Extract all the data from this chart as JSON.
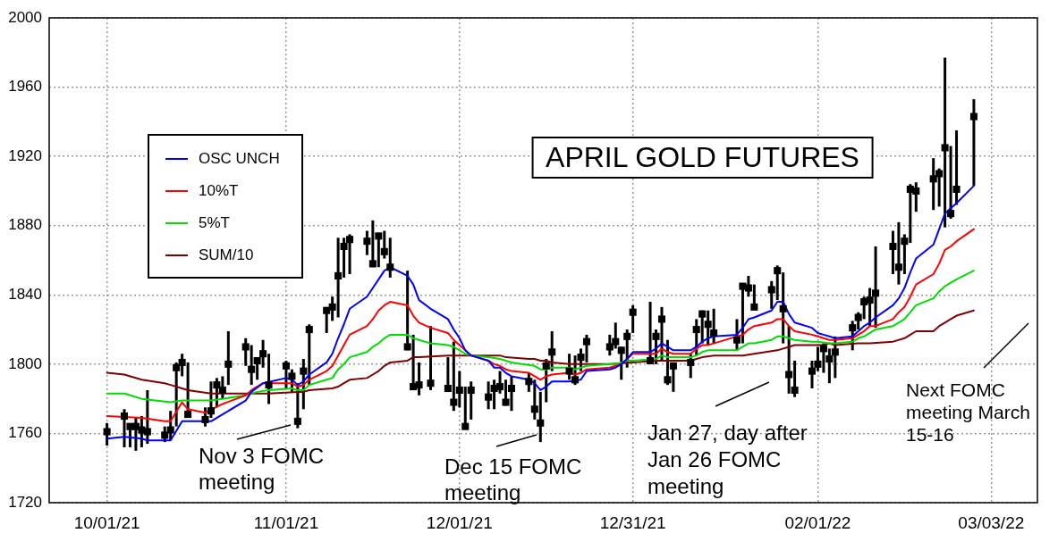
{
  "chart_data": {
    "type": "scatter",
    "title": "APRIL GOLD FUTURES",
    "x": [
      "2021-10-01",
      "2021-10-04",
      "2021-10-05",
      "2021-10-06",
      "2021-10-07",
      "2021-10-08",
      "2021-10-11",
      "2021-10-12",
      "2021-10-13",
      "2021-10-14",
      "2021-10-15",
      "2021-10-18",
      "2021-10-19",
      "2021-10-20",
      "2021-10-21",
      "2021-10-22",
      "2021-10-25",
      "2021-10-26",
      "2021-10-27",
      "2021-10-28",
      "2021-10-29",
      "2021-11-01",
      "2021-11-02",
      "2021-11-03",
      "2021-11-04",
      "2021-11-05",
      "2021-11-08",
      "2021-11-09",
      "2021-11-10",
      "2021-11-11",
      "2021-11-12",
      "2021-11-15",
      "2021-11-16",
      "2021-11-17",
      "2021-11-18",
      "2021-11-19",
      "2021-11-22",
      "2021-11-23",
      "2021-11-24",
      "2021-11-26",
      "2021-11-29",
      "2021-11-30",
      "2021-12-01",
      "2021-12-02",
      "2021-12-03",
      "2021-12-06",
      "2021-12-07",
      "2021-12-08",
      "2021-12-09",
      "2021-12-10",
      "2021-12-13",
      "2021-12-14",
      "2021-12-15",
      "2021-12-16",
      "2021-12-17",
      "2021-12-20",
      "2021-12-21",
      "2021-12-22",
      "2021-12-23",
      "2021-12-27",
      "2021-12-28",
      "2021-12-29",
      "2021-12-30",
      "2021-12-31",
      "2022-01-03",
      "2022-01-04",
      "2022-01-05",
      "2022-01-06",
      "2022-01-07",
      "2022-01-10",
      "2022-01-11",
      "2022-01-12",
      "2022-01-13",
      "2022-01-14",
      "2022-01-18",
      "2022-01-19",
      "2022-01-20",
      "2022-01-21",
      "2022-01-24",
      "2022-01-25",
      "2022-01-26",
      "2022-01-27",
      "2022-01-28",
      "2022-01-31",
      "2022-02-01",
      "2022-02-02",
      "2022-02-03",
      "2022-02-04",
      "2022-02-07",
      "2022-02-08",
      "2022-02-09",
      "2022-02-10",
      "2022-02-11",
      "2022-02-14",
      "2022-02-15",
      "2022-02-16",
      "2022-02-17",
      "2022-02-18",
      "2022-02-21",
      "2022-02-22",
      "2022-02-23",
      "2022-02-24",
      "2022-02-25",
      "2022-02-28"
    ],
    "series": [
      {
        "type": "scatter",
        "color": "#000000",
        "marker": "square",
        "values": [
          1761,
          1770,
          1764,
          1764,
          1762,
          1761,
          1759,
          1762,
          1798,
          1801,
          1771,
          1768,
          1773,
          1788,
          1785,
          1800,
          1810,
          1797,
          1802,
          1806,
          1788,
          1799,
          1793,
          1767,
          1796,
          1820,
          1831,
          1833,
          1851,
          1868,
          1872,
          1871,
          1858,
          1874,
          1865,
          1856,
          1810,
          1787,
          1788,
          1789,
          1786,
          1778,
          1785,
          1764,
          1785,
          1781,
          1786,
          1787,
          1778,
          1786,
          1790,
          1774,
          1766,
          1799,
          1807,
          1796,
          1791,
          1804,
          1813,
          1810,
          1813,
          1808,
          1816,
          1830,
          1802,
          1816,
          1826,
          1791,
          1799,
          1801,
          1820,
          1829,
          1823,
          1818,
          1814,
          1845,
          1844,
          1833,
          1843,
          1854,
          1832,
          1794,
          1785,
          1796,
          1800,
          1809,
          1803,
          1807,
          1821,
          1827,
          1836,
          1837,
          1841,
          1868,
          1856,
          1871,
          1901,
          1900,
          1907,
          1910,
          1925,
          1887,
          1901,
          1943
        ],
        "errors": [
          [
            1753,
            1766
          ],
          [
            1752,
            1774
          ],
          [
            1752,
            1765
          ],
          [
            1750,
            1769
          ],
          [
            1752,
            1770
          ],
          [
            1754,
            1785
          ],
          [
            1755,
            1764
          ],
          [
            1756,
            1773
          ],
          [
            1764,
            1801
          ],
          [
            1793,
            1806
          ],
          [
            1769,
            1801
          ],
          [
            1764,
            1775
          ],
          [
            1769,
            1790
          ],
          [
            1775,
            1792
          ],
          [
            1780,
            1793
          ],
          [
            1788,
            1819
          ],
          [
            1799,
            1815
          ],
          [
            1788,
            1811
          ],
          [
            1791,
            1804
          ],
          [
            1798,
            1814
          ],
          [
            1777,
            1806
          ],
          [
            1786,
            1802
          ],
          [
            1784,
            1797
          ],
          [
            1763,
            1789
          ],
          [
            1774,
            1803
          ],
          [
            1788,
            1823
          ],
          [
            1818,
            1833
          ],
          [
            1825,
            1839
          ],
          [
            1827,
            1873
          ],
          [
            1850,
            1873
          ],
          [
            1852,
            1875
          ],
          [
            1863,
            1877
          ],
          [
            1856,
            1883
          ],
          [
            1856,
            1875
          ],
          [
            1861,
            1877
          ],
          [
            1850,
            1873
          ],
          [
            1808,
            1854
          ],
          [
            1786,
            1817
          ],
          [
            1782,
            1801
          ],
          [
            1785,
            1822
          ],
          [
            1785,
            1804
          ],
          [
            1773,
            1813
          ],
          [
            1775,
            1796
          ],
          [
            1763,
            1787
          ],
          [
            1768,
            1790
          ],
          [
            1774,
            1790
          ],
          [
            1774,
            1791
          ],
          [
            1783,
            1796
          ],
          [
            1776,
            1791
          ],
          [
            1773,
            1793
          ],
          [
            1784,
            1795
          ],
          [
            1768,
            1791
          ],
          [
            1755,
            1784
          ],
          [
            1778,
            1803
          ],
          [
            1796,
            1819
          ],
          [
            1791,
            1806
          ],
          [
            1788,
            1805
          ],
          [
            1796,
            1809
          ],
          [
            1801,
            1817
          ],
          [
            1805,
            1817
          ],
          [
            1809,
            1824
          ],
          [
            1791,
            1810
          ],
          [
            1798,
            1820
          ],
          [
            1818,
            1834
          ],
          [
            1800,
            1836
          ],
          [
            1800,
            1820
          ],
          [
            1802,
            1833
          ],
          [
            1788,
            1814
          ],
          [
            1784,
            1801
          ],
          [
            1792,
            1806
          ],
          [
            1805,
            1826
          ],
          [
            1812,
            1831
          ],
          [
            1811,
            1831
          ],
          [
            1812,
            1832
          ],
          [
            1808,
            1826
          ],
          [
            1812,
            1846
          ],
          [
            1839,
            1851
          ],
          [
            1832,
            1846
          ],
          [
            1832,
            1848
          ],
          [
            1837,
            1857
          ],
          [
            1812,
            1853
          ],
          [
            1783,
            1822
          ],
          [
            1781,
            1802
          ],
          [
            1786,
            1802
          ],
          [
            1796,
            1810
          ],
          [
            1795,
            1812
          ],
          [
            1789,
            1809
          ],
          [
            1792,
            1816
          ],
          [
            1808,
            1825
          ],
          [
            1820,
            1830
          ],
          [
            1826,
            1839
          ],
          [
            1822,
            1844
          ],
          [
            1821,
            1868
          ],
          [
            1852,
            1877
          ],
          [
            1846,
            1882
          ],
          [
            1852,
            1875
          ],
          [
            1870,
            1904
          ],
          [
            1888,
            1905
          ],
          [
            1889,
            1919
          ],
          [
            1891,
            1913
          ],
          [
            1879,
            1977
          ],
          [
            1884,
            1926
          ],
          [
            1892,
            1935
          ],
          [
            1903,
            1953
          ]
        ]
      },
      {
        "type": "line",
        "name": "OSC UNCH",
        "color": "#0000ff",
        "x": [
          "2021-10-01",
          "2021-10-04",
          "2021-10-07",
          "2021-10-08",
          "2021-10-12",
          "2021-10-14",
          "2021-10-15",
          "2021-10-19",
          "2021-10-21",
          "2021-10-25",
          "2021-10-26",
          "2021-10-28",
          "2021-11-01",
          "2021-11-02",
          "2021-11-03",
          "2021-11-04",
          "2021-11-05",
          "2021-11-08",
          "2021-11-09",
          "2021-11-10",
          "2021-11-11",
          "2021-11-12",
          "2021-11-15",
          "2021-11-16",
          "2021-11-17",
          "2021-11-18",
          "2021-11-19",
          "2021-11-22",
          "2021-11-23",
          "2021-11-24",
          "2021-11-26",
          "2021-11-29",
          "2021-11-30",
          "2021-12-01",
          "2021-12-02",
          "2021-12-03",
          "2021-12-06",
          "2021-12-07",
          "2021-12-08",
          "2021-12-09",
          "2021-12-10",
          "2021-12-13",
          "2021-12-14",
          "2021-12-15",
          "2021-12-16",
          "2021-12-17",
          "2021-12-20",
          "2021-12-22",
          "2021-12-23",
          "2021-12-27",
          "2021-12-28",
          "2021-12-29",
          "2021-12-30",
          "2021-12-31",
          "2022-01-03",
          "2022-01-04",
          "2022-01-05",
          "2022-01-06",
          "2022-01-07",
          "2022-01-10",
          "2022-01-11",
          "2022-01-12",
          "2022-01-13",
          "2022-01-14",
          "2022-01-18",
          "2022-01-19",
          "2022-01-20",
          "2022-01-21",
          "2022-01-24",
          "2022-01-25",
          "2022-01-26",
          "2022-01-27",
          "2022-01-28",
          "2022-01-31",
          "2022-02-01",
          "2022-02-02",
          "2022-02-03",
          "2022-02-04",
          "2022-02-07",
          "2022-02-08",
          "2022-02-09",
          "2022-02-10",
          "2022-02-11",
          "2022-02-14",
          "2022-02-15",
          "2022-02-16",
          "2022-02-17",
          "2022-02-18",
          "2022-02-21",
          "2022-02-22",
          "2022-02-23",
          "2022-02-24",
          "2022-02-25",
          "2022-02-28"
        ],
        "values": [
          1757,
          1758,
          1757,
          1756,
          1756,
          1767,
          1767,
          1767,
          1771,
          1779,
          1784,
          1789,
          1792,
          1791,
          1788,
          1790,
          1794,
          1801,
          1806,
          1815,
          1823,
          1832,
          1839,
          1844,
          1849,
          1854,
          1856,
          1851,
          1846,
          1837,
          1832,
          1826,
          1820,
          1815,
          1808,
          1805,
          1802,
          1798,
          1798,
          1795,
          1793,
          1791,
          1789,
          1785,
          1787,
          1790,
          1790,
          1791,
          1796,
          1797,
          1798,
          1800,
          1803,
          1807,
          1807,
          1809,
          1812,
          1810,
          1808,
          1808,
          1810,
          1813,
          1815,
          1816,
          1817,
          1821,
          1826,
          1827,
          1831,
          1836,
          1836,
          1829,
          1824,
          1821,
          1818,
          1817,
          1816,
          1815,
          1816,
          1819,
          1822,
          1824,
          1827,
          1834,
          1838,
          1844,
          1853,
          1861,
          1869,
          1878,
          1887,
          1890,
          1893,
          1903
        ]
      },
      {
        "type": "line",
        "name": "10%T",
        "color": "#ff0000",
        "x": [
          "2021-10-01",
          "2021-10-07",
          "2021-10-11",
          "2021-10-12",
          "2021-10-14",
          "2021-10-15",
          "2021-10-18",
          "2021-10-21",
          "2021-10-25",
          "2021-10-26",
          "2021-10-28",
          "2021-11-01",
          "2021-11-02",
          "2021-11-03",
          "2021-11-04",
          "2021-11-05",
          "2021-11-08",
          "2021-11-09",
          "2021-11-10",
          "2021-11-11",
          "2021-11-12",
          "2021-11-15",
          "2021-11-16",
          "2021-11-17",
          "2021-11-18",
          "2021-11-19",
          "2021-11-22",
          "2021-11-23",
          "2021-11-24",
          "2021-11-26",
          "2021-11-29",
          "2021-11-30",
          "2021-12-01",
          "2021-12-02",
          "2021-12-03",
          "2021-12-06",
          "2021-12-07",
          "2021-12-08",
          "2021-12-09",
          "2021-12-10",
          "2021-12-13",
          "2021-12-14",
          "2021-12-15",
          "2021-12-16",
          "2021-12-17",
          "2021-12-20",
          "2021-12-21",
          "2021-12-22",
          "2021-12-23",
          "2021-12-27",
          "2021-12-28",
          "2021-12-29",
          "2021-12-30",
          "2021-12-31",
          "2022-01-03",
          "2022-01-04",
          "2022-01-05",
          "2022-01-06",
          "2022-01-07",
          "2022-01-10",
          "2022-01-11",
          "2022-01-12",
          "2022-01-13",
          "2022-01-14",
          "2022-01-19",
          "2022-01-20",
          "2022-01-21",
          "2022-01-24",
          "2022-01-25",
          "2022-01-26",
          "2022-01-27",
          "2022-01-28",
          "2022-01-31",
          "2022-02-01",
          "2022-02-02",
          "2022-02-03",
          "2022-02-04",
          "2022-02-07",
          "2022-02-08",
          "2022-02-09",
          "2022-02-10",
          "2022-02-11",
          "2022-02-14",
          "2022-02-15",
          "2022-02-16",
          "2022-02-17",
          "2022-02-18",
          "2022-02-21",
          "2022-02-22",
          "2022-02-23",
          "2022-02-24",
          "2022-02-25",
          "2022-02-28"
        ],
        "values": [
          1770,
          1769,
          1767,
          1767,
          1778,
          1774,
          1772,
          1777,
          1782,
          1785,
          1789,
          1789,
          1789,
          1787,
          1788,
          1791,
          1796,
          1799,
          1805,
          1811,
          1817,
          1822,
          1826,
          1831,
          1834,
          1836,
          1834,
          1828,
          1824,
          1821,
          1818,
          1814,
          1811,
          1808,
          1805,
          1802,
          1800,
          1799,
          1797,
          1796,
          1795,
          1793,
          1791,
          1793,
          1794,
          1795,
          1794,
          1795,
          1797,
          1798,
          1799,
          1800,
          1803,
          1806,
          1806,
          1806,
          1809,
          1807,
          1806,
          1806,
          1809,
          1811,
          1811,
          1812,
          1817,
          1820,
          1822,
          1824,
          1826,
          1826,
          1822,
          1819,
          1817,
          1816,
          1815,
          1814,
          1814,
          1815,
          1817,
          1819,
          1822,
          1822,
          1826,
          1830,
          1833,
          1839,
          1846,
          1852,
          1858,
          1866,
          1868,
          1871,
          1878
        ]
      },
      {
        "type": "line",
        "name": "5%T",
        "color": "#00dd00",
        "x": [
          "2021-10-01",
          "2021-10-04",
          "2021-10-07",
          "2021-10-12",
          "2021-10-14",
          "2021-10-18",
          "2021-10-19",
          "2021-10-21",
          "2021-10-25",
          "2021-10-27",
          "2021-10-29",
          "2021-11-02",
          "2021-11-03",
          "2021-11-04",
          "2021-11-05",
          "2021-11-08",
          "2021-11-09",
          "2021-11-10",
          "2021-11-11",
          "2021-11-12",
          "2021-11-15",
          "2021-11-16",
          "2021-11-17",
          "2021-11-18",
          "2021-11-19",
          "2021-11-22",
          "2021-11-23",
          "2021-11-24",
          "2021-11-26",
          "2021-11-29",
          "2021-11-30",
          "2021-12-01",
          "2021-12-02",
          "2021-12-03",
          "2021-12-06",
          "2021-12-08",
          "2021-12-10",
          "2021-12-14",
          "2021-12-15",
          "2021-12-16",
          "2021-12-17",
          "2021-12-20",
          "2021-12-21",
          "2021-12-22",
          "2021-12-23",
          "2021-12-27",
          "2021-12-28",
          "2021-12-29",
          "2021-12-30",
          "2021-12-31",
          "2022-01-04",
          "2022-01-05",
          "2022-01-06",
          "2022-01-07",
          "2022-01-10",
          "2022-01-11",
          "2022-01-12",
          "2022-01-13",
          "2022-01-14",
          "2022-01-18",
          "2022-01-19",
          "2022-01-20",
          "2022-01-21",
          "2022-01-24",
          "2022-01-25",
          "2022-01-26",
          "2022-01-27",
          "2022-01-28",
          "2022-01-31",
          "2022-02-01",
          "2022-02-03",
          "2022-02-04",
          "2022-02-07",
          "2022-02-08",
          "2022-02-09",
          "2022-02-10",
          "2022-02-11",
          "2022-02-14",
          "2022-02-15",
          "2022-02-16",
          "2022-02-17",
          "2022-02-18",
          "2022-02-21",
          "2022-02-22",
          "2022-02-23",
          "2022-02-24",
          "2022-02-25",
          "2022-02-28"
        ],
        "values": [
          1783,
          1783,
          1780,
          1778,
          1779,
          1779,
          1779,
          1780,
          1782,
          1784,
          1785,
          1786,
          1785,
          1785,
          1788,
          1791,
          1792,
          1797,
          1800,
          1804,
          1807,
          1810,
          1812,
          1815,
          1817,
          1817,
          1815,
          1814,
          1812,
          1811,
          1810,
          1808,
          1806,
          1805,
          1804,
          1803,
          1801,
          1799,
          1797,
          1797,
          1798,
          1798,
          1797,
          1798,
          1799,
          1800,
          1800,
          1801,
          1802,
          1802,
          1803,
          1805,
          1804,
          1804,
          1804,
          1805,
          1807,
          1808,
          1808,
          1808,
          1810,
          1812,
          1812,
          1814,
          1816,
          1816,
          1815,
          1814,
          1813,
          1813,
          1812,
          1812,
          1813,
          1815,
          1816,
          1818,
          1820,
          1822,
          1824,
          1826,
          1830,
          1834,
          1838,
          1842,
          1845,
          1847,
          1849,
          1854
        ]
      },
      {
        "type": "line",
        "name": "SUM/10",
        "color": "#800000",
        "x": [
          "2021-10-01",
          "2021-10-04",
          "2021-10-07",
          "2021-10-11",
          "2021-10-12",
          "2021-10-14",
          "2021-10-15",
          "2021-10-19",
          "2021-10-21",
          "2021-10-26",
          "2021-10-29",
          "2021-11-03",
          "2021-11-04",
          "2021-11-05",
          "2021-11-09",
          "2021-11-10",
          "2021-11-11",
          "2021-11-12",
          "2021-11-15",
          "2021-11-16",
          "2021-11-17",
          "2021-11-18",
          "2021-11-19",
          "2021-11-22",
          "2021-11-23",
          "2021-11-24",
          "2021-11-29",
          "2021-12-03",
          "2021-12-08",
          "2021-12-09",
          "2021-12-13",
          "2021-12-14",
          "2021-12-15",
          "2021-12-16",
          "2021-12-17",
          "2021-12-20",
          "2021-12-27",
          "2021-12-31",
          "2022-01-04",
          "2022-01-06",
          "2022-01-10",
          "2022-01-11",
          "2022-01-12",
          "2022-01-14",
          "2022-01-19",
          "2022-01-21",
          "2022-01-25",
          "2022-01-27",
          "2022-01-28",
          "2022-01-31",
          "2022-02-02",
          "2022-02-03",
          "2022-02-04",
          "2022-02-08",
          "2022-02-10",
          "2022-02-14",
          "2022-02-16",
          "2022-02-17",
          "2022-02-18",
          "2022-02-21",
          "2022-02-22",
          "2022-02-23",
          "2022-02-24",
          "2022-02-25",
          "2022-02-28"
        ],
        "values": [
          1795,
          1794,
          1791,
          1789,
          1788,
          1786,
          1785,
          1783,
          1783,
          1783,
          1783,
          1784,
          1784,
          1785,
          1786,
          1787,
          1789,
          1791,
          1792,
          1794,
          1796,
          1799,
          1801,
          1802,
          1804,
          1804,
          1805,
          1805,
          1805,
          1804,
          1803,
          1803,
          1802,
          1802,
          1801,
          1800,
          1800,
          1801,
          1802,
          1802,
          1802,
          1803,
          1804,
          1805,
          1805,
          1806,
          1808,
          1810,
          1811,
          1811,
          1811,
          1812,
          1811,
          1812,
          1812,
          1813,
          1815,
          1817,
          1819,
          1819,
          1822,
          1824,
          1826,
          1828,
          1831
        ]
      }
    ],
    "xlim": [
      "2021-09-21",
      "2022-03-11"
    ],
    "xticks": [
      {
        "value": "2021-10-01",
        "label": "10/01/21"
      },
      {
        "value": "2021-11-01",
        "label": "11/01/21"
      },
      {
        "value": "2021-12-01",
        "label": "12/01/21"
      },
      {
        "value": "2021-12-31",
        "label": "12/31/21"
      },
      {
        "value": "2022-02-01",
        "label": "02/01/22"
      },
      {
        "value": "2022-03-03",
        "label": "03/03/22"
      }
    ],
    "ylim": [
      1720,
      2000
    ],
    "yticks": [
      1720,
      1760,
      1800,
      1840,
      1880,
      1920,
      1960,
      2000
    ],
    "grid": true,
    "legend": "top left",
    "marker": "none",
    "annotations": [
      "Nov 3 FOMC meeting",
      "Dec 15 FOMC meeting",
      "Jan 27, day after Jan 26 FOMC meeting",
      "Next FOMC meeting March 15-16"
    ]
  }
}
